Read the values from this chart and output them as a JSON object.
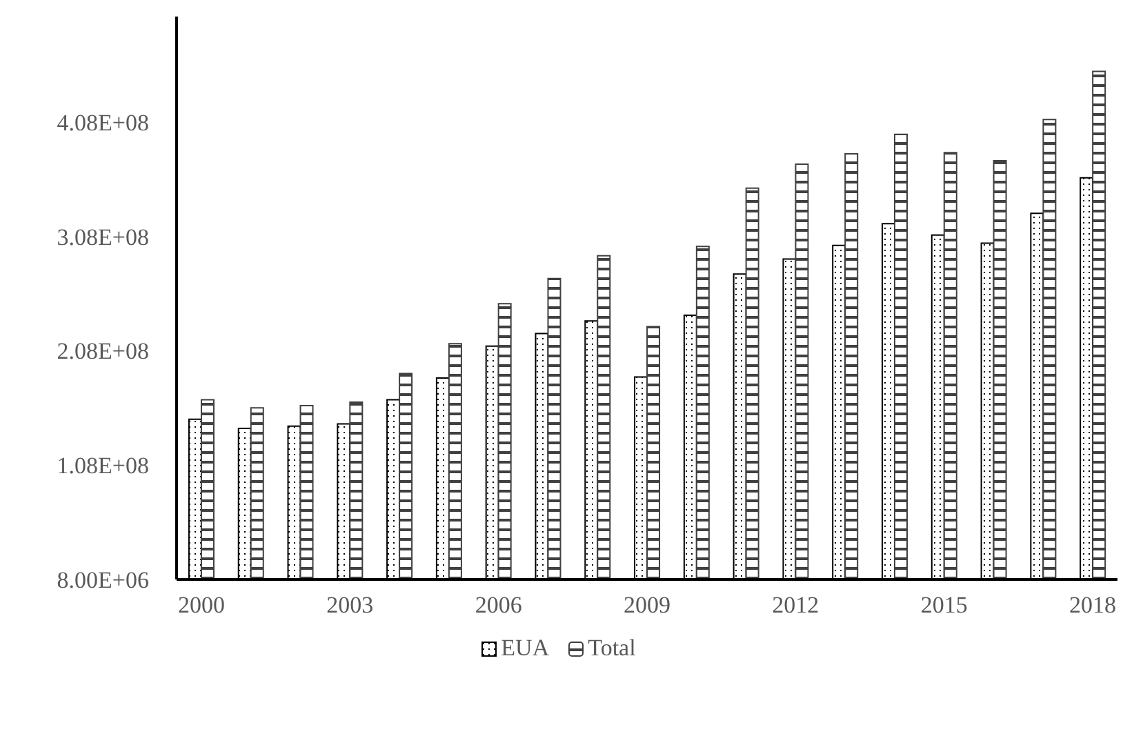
{
  "chart_data": {
    "type": "bar",
    "categories": [
      "2000",
      null,
      null,
      "2003",
      null,
      null,
      "2006",
      null,
      null,
      "2009",
      null,
      null,
      "2012",
      null,
      null,
      "2015",
      null,
      null,
      "2018"
    ],
    "series": [
      {
        "name": "EUA",
        "color": "#000000",
        "values": [
          148000000,
          140000000,
          142000000,
          144000000,
          165000000,
          184000000,
          212000000,
          223000000,
          234000000,
          185000000,
          239000000,
          275000000,
          288000000,
          300000000,
          319000000,
          309000000,
          302000000,
          328000000,
          359000000
        ]
      },
      {
        "name": "Total",
        "color": "#404040",
        "values": [
          165000000,
          158000000,
          160000000,
          163000000,
          188000000,
          214000000,
          249000000,
          271000000,
          291000000,
          229000000,
          299000000,
          350000000,
          371000000,
          380000000,
          397000000,
          381000000,
          374000000,
          410000000,
          452000000
        ]
      }
    ],
    "ylim": [
      8000000,
      500000000
    ],
    "yticks": [
      {
        "value": 8000000,
        "label": "8.00E+06"
      },
      {
        "value": 108000000,
        "label": "1.08E+08"
      },
      {
        "value": 208000000,
        "label": "2.08E+08"
      },
      {
        "value": 308000000,
        "label": "3.08E+08"
      },
      {
        "value": 408000000,
        "label": "4.08E+08"
      }
    ],
    "grid": false,
    "legend": "bottom"
  }
}
